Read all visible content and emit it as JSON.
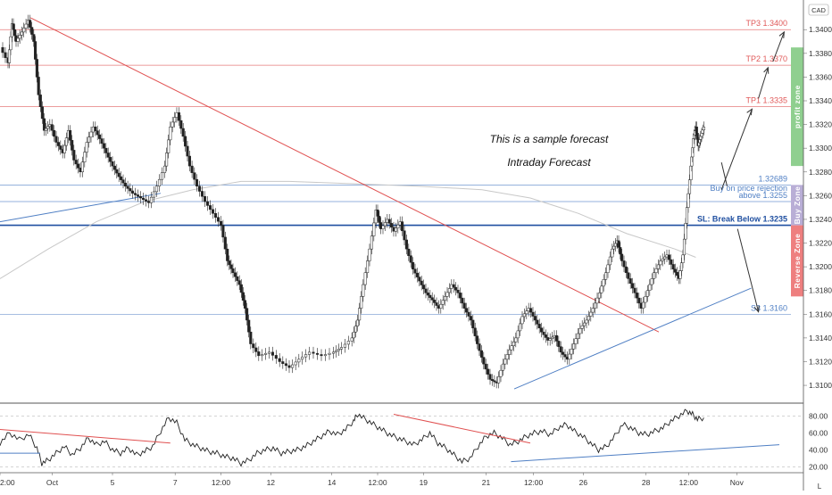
{
  "badges": {
    "currency": "CAD",
    "axis_toggle": "L"
  },
  "chart_data": {
    "type": "line",
    "price_axis": {
      "ylim": [
        1.3085,
        1.3425
      ],
      "ticks": [
        "1.34000",
        "1.33800",
        "1.33600",
        "1.33400",
        "1.33200",
        "1.33000",
        "1.32800",
        "1.32600",
        "1.32400",
        "1.32200",
        "1.32000",
        "1.31800",
        "1.31600",
        "1.31400",
        "1.31200",
        "1.31000"
      ],
      "tick_values": [
        1.34,
        1.338,
        1.336,
        1.334,
        1.332,
        1.33,
        1.328,
        1.326,
        1.324,
        1.322,
        1.32,
        1.318,
        1.316,
        1.314,
        1.312,
        1.31
      ]
    },
    "time_axis": {
      "labels": [
        "2:00",
        "Oct",
        "5",
        "7",
        "12:00",
        "12",
        "14",
        "12:00",
        "19",
        "21",
        "12:00",
        "26",
        "28",
        "12:00",
        "Nov"
      ],
      "label_positions": [
        0.0,
        0.065,
        0.14,
        0.218,
        0.275,
        0.337,
        0.413,
        0.47,
        0.527,
        0.605,
        0.664,
        0.726,
        0.804,
        0.857,
        0.917
      ]
    },
    "levels": [
      {
        "name": "TP3",
        "label": "TP3 1.3400",
        "value": 1.34,
        "color": "#e05a5a"
      },
      {
        "name": "TP2",
        "label": "TP2 1.3370",
        "value": 1.337,
        "color": "#e05a5a"
      },
      {
        "name": "TP1",
        "label": "TP1 1.3335",
        "value": 1.3335,
        "color": "#e05a5a"
      },
      {
        "name": "entry-high",
        "label": "1.32689",
        "value": 1.32689,
        "color": "#4f7fc4"
      },
      {
        "name": "buy-on-rejection",
        "label": "Buy on price rejection",
        "value": 1.3261,
        "color": "#4f7fc4",
        "line": false
      },
      {
        "name": "above",
        "label": "above 1.3255",
        "value": 1.3255,
        "color": "#4f7fc4"
      },
      {
        "name": "stop-loss",
        "label": "SL: Break Below 1.3235",
        "value": 1.3235,
        "color": "#1f4fa0",
        "bold": true
      },
      {
        "name": "S3",
        "label": "S3 1.3160",
        "value": 1.316,
        "color": "#4f7fc4"
      }
    ],
    "zones": [
      {
        "name": "profit-zone",
        "label": "profit zone",
        "from": 1.3285,
        "to": 1.3385,
        "color": "#8fcf8f"
      },
      {
        "name": "buy-zone",
        "label": "Buy Zone",
        "from": 1.3235,
        "to": 1.3269,
        "color": "#b9aed6"
      },
      {
        "name": "reverse-zone",
        "label": "Reverse Zone",
        "from": 1.3175,
        "to": 1.3235,
        "color": "#ee7f7f"
      }
    ],
    "annotations": [
      "This is a sample forecast",
      "Intraday Forecast"
    ],
    "price_series": [
      [
        0.0,
        1.3385
      ],
      [
        0.01,
        1.3372
      ],
      [
        0.015,
        1.3405
      ],
      [
        0.02,
        1.339
      ],
      [
        0.027,
        1.3398
      ],
      [
        0.035,
        1.3408
      ],
      [
        0.042,
        1.339
      ],
      [
        0.048,
        1.3345
      ],
      [
        0.055,
        1.3315
      ],
      [
        0.062,
        1.332
      ],
      [
        0.07,
        1.3305
      ],
      [
        0.078,
        1.3296
      ],
      [
        0.085,
        1.3315
      ],
      [
        0.092,
        1.329
      ],
      [
        0.1,
        1.328
      ],
      [
        0.108,
        1.3305
      ],
      [
        0.116,
        1.3318
      ],
      [
        0.124,
        1.3308
      ],
      [
        0.132,
        1.3296
      ],
      [
        0.14,
        1.3285
      ],
      [
        0.148,
        1.3276
      ],
      [
        0.156,
        1.3268
      ],
      [
        0.165,
        1.3262
      ],
      [
        0.175,
        1.3258
      ],
      [
        0.185,
        1.3254
      ],
      [
        0.195,
        1.3268
      ],
      [
        0.205,
        1.3285
      ],
      [
        0.212,
        1.3318
      ],
      [
        0.22,
        1.333
      ],
      [
        0.228,
        1.331
      ],
      [
        0.236,
        1.3285
      ],
      [
        0.245,
        1.3268
      ],
      [
        0.255,
        1.3255
      ],
      [
        0.265,
        1.3245
      ],
      [
        0.275,
        1.3235
      ],
      [
        0.283,
        1.3205
      ],
      [
        0.29,
        1.3195
      ],
      [
        0.298,
        1.3185
      ],
      [
        0.305,
        1.3165
      ],
      [
        0.312,
        1.3135
      ],
      [
        0.322,
        1.3125
      ],
      [
        0.335,
        1.3128
      ],
      [
        0.348,
        1.312
      ],
      [
        0.36,
        1.3115
      ],
      [
        0.372,
        1.3122
      ],
      [
        0.385,
        1.3128
      ],
      [
        0.4,
        1.3125
      ],
      [
        0.415,
        1.3128
      ],
      [
        0.425,
        1.3132
      ],
      [
        0.438,
        1.314
      ],
      [
        0.445,
        1.3155
      ],
      [
        0.452,
        1.3185
      ],
      [
        0.46,
        1.3215
      ],
      [
        0.468,
        1.3248
      ],
      [
        0.474,
        1.3232
      ],
      [
        0.482,
        1.324
      ],
      [
        0.49,
        1.323
      ],
      [
        0.498,
        1.3238
      ],
      [
        0.506,
        1.3215
      ],
      [
        0.514,
        1.3198
      ],
      [
        0.522,
        1.3188
      ],
      [
        0.53,
        1.3178
      ],
      [
        0.538,
        1.3172
      ],
      [
        0.546,
        1.3165
      ],
      [
        0.554,
        1.3175
      ],
      [
        0.562,
        1.3185
      ],
      [
        0.57,
        1.3178
      ],
      [
        0.578,
        1.3165
      ],
      [
        0.586,
        1.3155
      ],
      [
        0.594,
        1.3135
      ],
      [
        0.602,
        1.3118
      ],
      [
        0.61,
        1.3105
      ],
      [
        0.618,
        1.3102
      ],
      [
        0.626,
        1.3118
      ],
      [
        0.634,
        1.313
      ],
      [
        0.642,
        1.314
      ],
      [
        0.65,
        1.3158
      ],
      [
        0.658,
        1.3165
      ],
      [
        0.666,
        1.3155
      ],
      [
        0.674,
        1.3145
      ],
      [
        0.682,
        1.3138
      ],
      [
        0.69,
        1.3142
      ],
      [
        0.698,
        1.3128
      ],
      [
        0.706,
        1.3122
      ],
      [
        0.714,
        1.3135
      ],
      [
        0.722,
        1.3148
      ],
      [
        0.73,
        1.3155
      ],
      [
        0.738,
        1.3165
      ],
      [
        0.746,
        1.3178
      ],
      [
        0.754,
        1.3195
      ],
      [
        0.762,
        1.3215
      ],
      [
        0.768,
        1.3222
      ],
      [
        0.774,
        1.3205
      ],
      [
        0.782,
        1.319
      ],
      [
        0.79,
        1.3178
      ],
      [
        0.798,
        1.3165
      ],
      [
        0.806,
        1.318
      ],
      [
        0.814,
        1.3195
      ],
      [
        0.822,
        1.3205
      ],
      [
        0.83,
        1.321
      ],
      [
        0.838,
        1.3198
      ],
      [
        0.845,
        1.319
      ],
      [
        0.85,
        1.321
      ],
      [
        0.855,
        1.325
      ],
      [
        0.86,
        1.3285
      ],
      [
        0.863,
        1.3308
      ],
      [
        0.866,
        1.3318
      ],
      [
        0.869,
        1.3302
      ],
      [
        0.872,
        1.331
      ],
      [
        0.876,
        1.3318
      ]
    ],
    "rsi": {
      "ylim": [
        15,
        92
      ],
      "ticks": [
        "80.00",
        "60.00",
        "40.00",
        "20.00"
      ],
      "tick_values": [
        80,
        60,
        40,
        20
      ],
      "series": [
        [
          0.0,
          48
        ],
        [
          0.012,
          60
        ],
        [
          0.024,
          52
        ],
        [
          0.036,
          58
        ],
        [
          0.046,
          42
        ],
        [
          0.052,
          24
        ],
        [
          0.06,
          28
        ],
        [
          0.07,
          36
        ],
        [
          0.08,
          44
        ],
        [
          0.09,
          34
        ],
        [
          0.1,
          42
        ],
        [
          0.11,
          54
        ],
        [
          0.12,
          46
        ],
        [
          0.13,
          50
        ],
        [
          0.14,
          40
        ],
        [
          0.15,
          36
        ],
        [
          0.16,
          42
        ],
        [
          0.17,
          34
        ],
        [
          0.18,
          38
        ],
        [
          0.19,
          44
        ],
        [
          0.2,
          62
        ],
        [
          0.21,
          78
        ],
        [
          0.22,
          72
        ],
        [
          0.23,
          52
        ],
        [
          0.24,
          46
        ],
        [
          0.25,
          42
        ],
        [
          0.26,
          38
        ],
        [
          0.27,
          36
        ],
        [
          0.28,
          32
        ],
        [
          0.29,
          30
        ],
        [
          0.3,
          24
        ],
        [
          0.31,
          28
        ],
        [
          0.32,
          36
        ],
        [
          0.33,
          40
        ],
        [
          0.34,
          42
        ],
        [
          0.35,
          36
        ],
        [
          0.36,
          38
        ],
        [
          0.37,
          40
        ],
        [
          0.38,
          44
        ],
        [
          0.39,
          50
        ],
        [
          0.4,
          56
        ],
        [
          0.41,
          62
        ],
        [
          0.42,
          58
        ],
        [
          0.43,
          64
        ],
        [
          0.44,
          74
        ],
        [
          0.445,
          82
        ],
        [
          0.455,
          76
        ],
        [
          0.465,
          70
        ],
        [
          0.475,
          64
        ],
        [
          0.485,
          58
        ],
        [
          0.495,
          54
        ],
        [
          0.505,
          50
        ],
        [
          0.515,
          46
        ],
        [
          0.525,
          52
        ],
        [
          0.535,
          60
        ],
        [
          0.545,
          48
        ],
        [
          0.555,
          42
        ],
        [
          0.565,
          34
        ],
        [
          0.575,
          26
        ],
        [
          0.585,
          30
        ],
        [
          0.595,
          44
        ],
        [
          0.605,
          56
        ],
        [
          0.615,
          60
        ],
        [
          0.625,
          54
        ],
        [
          0.635,
          46
        ],
        [
          0.645,
          50
        ],
        [
          0.655,
          56
        ],
        [
          0.665,
          60
        ],
        [
          0.675,
          62
        ],
        [
          0.685,
          58
        ],
        [
          0.695,
          66
        ],
        [
          0.705,
          70
        ],
        [
          0.715,
          62
        ],
        [
          0.725,
          56
        ],
        [
          0.735,
          48
        ],
        [
          0.745,
          40
        ],
        [
          0.755,
          44
        ],
        [
          0.765,
          56
        ],
        [
          0.775,
          70
        ],
        [
          0.785,
          66
        ],
        [
          0.795,
          60
        ],
        [
          0.805,
          58
        ],
        [
          0.815,
          62
        ],
        [
          0.825,
          66
        ],
        [
          0.835,
          74
        ],
        [
          0.845,
          80
        ],
        [
          0.855,
          86
        ],
        [
          0.862,
          82
        ],
        [
          0.868,
          76
        ],
        [
          0.876,
          78
        ]
      ]
    }
  }
}
